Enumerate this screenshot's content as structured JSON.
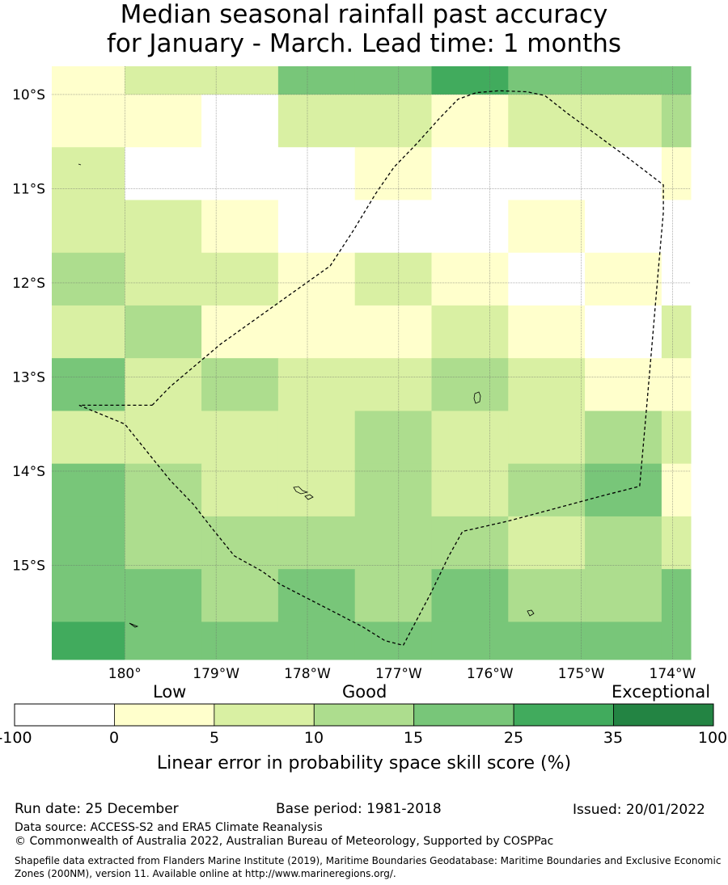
{
  "title_line1": "Median seasonal rainfall past accuracy",
  "title_line2": "for January - March. Lead time: 1 months",
  "map": {
    "lon_range": [
      179.2,
      186.2
    ],
    "lat_range": [
      -16.0,
      -9.7
    ],
    "lon_ticks": [
      {
        "value": 180,
        "label": "180°"
      },
      {
        "value": 181,
        "label": "179°W"
      },
      {
        "value": 182,
        "label": "178°W"
      },
      {
        "value": 183,
        "label": "177°W"
      },
      {
        "value": 184,
        "label": "176°W"
      },
      {
        "value": 185,
        "label": "175°W"
      },
      {
        "value": 186,
        "label": "174°W"
      }
    ],
    "lat_ticks": [
      {
        "value": -10,
        "label": "10°S"
      },
      {
        "value": -11,
        "label": "11°S"
      },
      {
        "value": -12,
        "label": "12°S"
      },
      {
        "value": -13,
        "label": "13°S"
      },
      {
        "value": -14,
        "label": "14°S"
      },
      {
        "value": -15,
        "label": "15°S"
      }
    ],
    "grid_lon_edges": [
      179.2,
      180.0,
      180.84,
      181.68,
      182.52,
      183.36,
      184.2,
      185.04,
      185.88,
      186.2
    ],
    "grid_lat_edges": [
      -9.7,
      -10.0,
      -10.56,
      -11.12,
      -11.68,
      -12.24,
      -12.8,
      -13.36,
      -13.92,
      -14.48,
      -15.04,
      -15.6,
      -16.0
    ],
    "skill_class_grid": [
      [
        1,
        2,
        2,
        4,
        4,
        5,
        4,
        4,
        4
      ],
      [
        1,
        1,
        0,
        2,
        2,
        1,
        2,
        2,
        3
      ],
      [
        2,
        0,
        0,
        0,
        1,
        0,
        0,
        0,
        1
      ],
      [
        2,
        2,
        1,
        0,
        0,
        0,
        1,
        0,
        0
      ],
      [
        3,
        2,
        2,
        1,
        2,
        1,
        0,
        1,
        0
      ],
      [
        2,
        3,
        1,
        1,
        1,
        2,
        1,
        0,
        2
      ],
      [
        4,
        2,
        3,
        2,
        2,
        3,
        2,
        1,
        1
      ],
      [
        2,
        2,
        2,
        2,
        3,
        2,
        2,
        3,
        2
      ],
      [
        4,
        3,
        2,
        2,
        3,
        2,
        3,
        4,
        1
      ],
      [
        4,
        3,
        3,
        3,
        3,
        3,
        2,
        3,
        2
      ],
      [
        4,
        4,
        3,
        4,
        3,
        4,
        3,
        3,
        4
      ],
      [
        5,
        4,
        4,
        4,
        4,
        4,
        4,
        4,
        4
      ]
    ],
    "boundary_lonlat": [
      [
        180.3,
        -13.3
      ],
      [
        180.5,
        -13.1
      ],
      [
        181.05,
        -12.65
      ],
      [
        181.7,
        -12.2
      ],
      [
        182.25,
        -11.82
      ],
      [
        182.5,
        -11.45
      ],
      [
        182.75,
        -11.05
      ],
      [
        182.95,
        -10.77
      ],
      [
        183.2,
        -10.52
      ],
      [
        183.45,
        -10.25
      ],
      [
        183.65,
        -10.05
      ],
      [
        183.85,
        -9.98
      ],
      [
        184.1,
        -9.96
      ],
      [
        184.4,
        -9.97
      ],
      [
        184.6,
        -10.01
      ],
      [
        184.85,
        -10.2
      ],
      [
        185.2,
        -10.45
      ],
      [
        185.55,
        -10.7
      ],
      [
        185.9,
        -10.96
      ],
      [
        185.9,
        -11.25
      ],
      [
        185.85,
        -11.8
      ],
      [
        185.78,
        -12.6
      ],
      [
        185.7,
        -13.5
      ],
      [
        185.64,
        -14.16
      ],
      [
        185.2,
        -14.27
      ],
      [
        184.7,
        -14.4
      ],
      [
        184.2,
        -14.53
      ],
      [
        183.7,
        -14.64
      ],
      [
        183.55,
        -14.9
      ],
      [
        183.35,
        -15.3
      ],
      [
        183.05,
        -15.85
      ],
      [
        182.85,
        -15.8
      ],
      [
        182.6,
        -15.65
      ],
      [
        182.3,
        -15.5
      ],
      [
        182.0,
        -15.35
      ],
      [
        181.7,
        -15.2
      ],
      [
        181.5,
        -15.06
      ],
      [
        181.2,
        -14.9
      ],
      [
        180.95,
        -14.6
      ],
      [
        180.75,
        -14.35
      ],
      [
        180.5,
        -14.1
      ],
      [
        180.3,
        -13.86
      ],
      [
        180.0,
        -13.5
      ],
      [
        179.5,
        -13.3
      ],
      [
        180.3,
        -13.3
      ]
    ]
  },
  "colorbar": {
    "colors": [
      "#ffffff",
      "#ffffcc",
      "#d9f0a3",
      "#addd8e",
      "#78c679",
      "#41ab5d",
      "#238443"
    ],
    "tick_labels": [
      "-100",
      "0",
      "5",
      "10",
      "15",
      "25",
      "35",
      "100"
    ],
    "category_low": "Low",
    "category_good": "Good",
    "category_exceptional": "Exceptional",
    "title": "Linear error in probability space skill score (%)"
  },
  "footer": {
    "run_date": "Run date: 25 December",
    "base_period": "Base period: 1981-2018",
    "issued": "Issued: 20/01/2022",
    "data_source": "Data source: ACCESS-S2 and ERA5 Climate Reanalysis",
    "copyright": "© Commonwealth of Australia 2022, Australian Bureau of Meteorology, Supported by COSPPac",
    "shapefile_note": "Shapefile data extracted from Flanders Marine Institute (2019), Maritime Boundaries Geodatabase: Maritime Boundaries and Exclusive Economic Zones (200NM), version 11. Available online at http://www.marineregions.org/."
  }
}
